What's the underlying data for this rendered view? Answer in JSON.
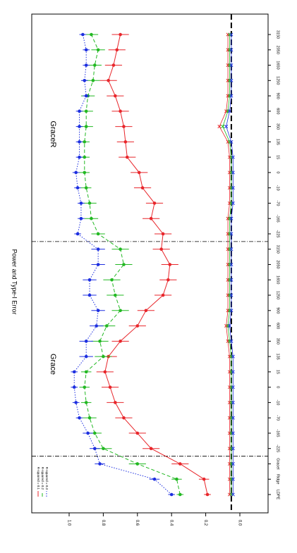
{
  "chart_data": {
    "type": "line",
    "orientation": "rotated-90-clockwise",
    "ylabel": "Power and Type-I Error",
    "ylim": [
      0,
      1.0
    ],
    "yticks": [
      "0.0",
      "0.2",
      "0.4",
      "0.6",
      "0.8",
      "1.0"
    ],
    "categories": [
      "LDPE",
      "Ridge",
      "GraceI",
      "-225",
      "-165",
      "-70",
      "-10",
      "0",
      "15",
      "135",
      "350",
      "600",
      "900",
      "1250",
      "1650",
      "2050",
      "3150",
      "-225",
      "-165",
      "-70",
      "-10",
      "0",
      "15",
      "135",
      "350",
      "600",
      "900",
      "1250",
      "1650",
      "2050",
      "3150"
    ],
    "panel_labels": [
      {
        "text": "Grace",
        "at_category": 8.5
      },
      {
        "text": "GraceR",
        "at_category": 23.5
      }
    ],
    "dividers_after_category": [
      2,
      16
    ],
    "reference_line": 0.05,
    "legend": {
      "position": "top-left",
      "entries": [
        "R-squared = 0.1",
        "R-squared = 0.2",
        "R-squared = 0.3"
      ]
    },
    "series": [
      {
        "name": "R-squared = 0.1",
        "color": "#e8262b",
        "dash": "solid",
        "values": [
          0.19,
          0.21,
          0.35,
          0.52,
          0.6,
          0.68,
          0.73,
          0.76,
          0.79,
          0.77,
          0.7,
          0.6,
          0.55,
          0.45,
          0.42,
          0.41,
          0.46,
          0.45,
          0.52,
          0.5,
          0.57,
          0.59,
          0.66,
          0.67,
          0.68,
          0.7,
          0.73,
          0.77,
          0.74,
          0.72,
          0.7
        ],
        "err": [
          0.02,
          0.03,
          0.05,
          0.05,
          0.05,
          0.05,
          0.05,
          0.05,
          0.05,
          0.05,
          0.05,
          0.05,
          0.05,
          0.05,
          0.05,
          0.05,
          0.05,
          0.05,
          0.05,
          0.05,
          0.05,
          0.05,
          0.05,
          0.05,
          0.05,
          0.05,
          0.05,
          0.05,
          0.05,
          0.05,
          0.05
        ]
      },
      {
        "name": "R-squared = 0.2",
        "color": "#22b822",
        "dash": "dashed",
        "values": [
          0.35,
          0.37,
          0.6,
          0.8,
          0.85,
          0.88,
          0.9,
          0.91,
          0.9,
          0.8,
          0.82,
          0.78,
          0.7,
          0.73,
          0.75,
          0.68,
          0.7,
          0.83,
          0.87,
          0.88,
          0.9,
          0.91,
          0.91,
          0.91,
          0.9,
          0.9,
          0.89,
          0.86,
          0.85,
          0.83,
          0.87
        ],
        "err": [
          0.02,
          0.03,
          0.05,
          0.05,
          0.04,
          0.04,
          0.03,
          0.03,
          0.03,
          0.05,
          0.05,
          0.05,
          0.05,
          0.05,
          0.05,
          0.05,
          0.05,
          0.04,
          0.04,
          0.04,
          0.03,
          0.03,
          0.03,
          0.03,
          0.04,
          0.04,
          0.04,
          0.04,
          0.04,
          0.04,
          0.04
        ]
      },
      {
        "name": "R-squared = 0.3",
        "color": "#1d2fe0",
        "dash": "dotted",
        "values": [
          0.4,
          0.5,
          0.82,
          0.85,
          0.89,
          0.94,
          0.96,
          0.97,
          0.97,
          0.9,
          0.9,
          0.84,
          0.83,
          0.88,
          0.88,
          0.83,
          0.83,
          0.95,
          0.93,
          0.93,
          0.95,
          0.96,
          0.94,
          0.94,
          0.94,
          0.94,
          0.9,
          0.91,
          0.9,
          0.9,
          0.92
        ],
        "err": [
          0.02,
          0.03,
          0.03,
          0.03,
          0.03,
          0.02,
          0.02,
          0.02,
          0.02,
          0.04,
          0.04,
          0.04,
          0.04,
          0.04,
          0.04,
          0.04,
          0.04,
          0.02,
          0.02,
          0.02,
          0.02,
          0.02,
          0.02,
          0.02,
          0.02,
          0.02,
          0.02,
          0.02,
          0.02,
          0.02,
          0.02
        ]
      }
    ],
    "type_one_error": {
      "style": "crosses near zero",
      "values_red": [
        0.06,
        0.06,
        0.06,
        0.06,
        0.06,
        0.06,
        0.06,
        0.06,
        0.06,
        0.06,
        0.07,
        0.08,
        0.07,
        0.07,
        0.07,
        0.07,
        0.07,
        0.07,
        0.07,
        0.06,
        0.06,
        0.06,
        0.06,
        0.07,
        0.12,
        0.08,
        0.07,
        0.07,
        0.07,
        0.07,
        0.07
      ],
      "values_green": [
        0.05,
        0.05,
        0.05,
        0.05,
        0.05,
        0.05,
        0.05,
        0.05,
        0.05,
        0.05,
        0.06,
        0.07,
        0.06,
        0.06,
        0.06,
        0.06,
        0.06,
        0.06,
        0.06,
        0.05,
        0.05,
        0.05,
        0.05,
        0.06,
        0.1,
        0.07,
        0.06,
        0.06,
        0.06,
        0.06,
        0.06
      ],
      "values_blue": [
        0.04,
        0.04,
        0.04,
        0.04,
        0.04,
        0.04,
        0.04,
        0.04,
        0.04,
        0.04,
        0.05,
        0.06,
        0.05,
        0.05,
        0.05,
        0.05,
        0.05,
        0.05,
        0.05,
        0.04,
        0.04,
        0.04,
        0.04,
        0.05,
        0.08,
        0.06,
        0.05,
        0.05,
        0.05,
        0.05,
        0.05
      ]
    }
  }
}
